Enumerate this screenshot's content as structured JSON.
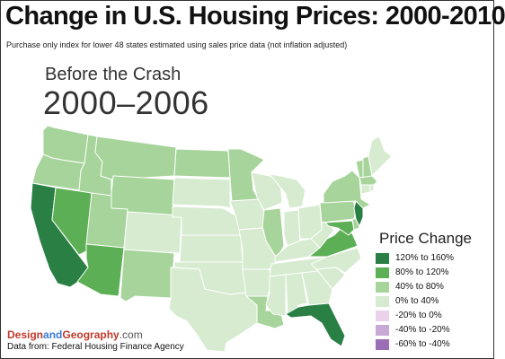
{
  "title": "Change in U.S. Housing Prices: 2000-2010",
  "subtitle": "Purchase only index for lower 48 states estimated using sales price data (not inflation adjusted)",
  "period": {
    "label": "Before the Crash",
    "range": "2000–2006"
  },
  "legend": {
    "title": "Price Change",
    "items": [
      {
        "label": "120% to 160%",
        "color": "#2a7f45"
      },
      {
        "label": "80% to 120%",
        "color": "#5daf55"
      },
      {
        "label": "40% to 80%",
        "color": "#a6d49a"
      },
      {
        "label": "0% to 40%",
        "color": "#d6ebcf"
      },
      {
        "label": "-20% to 0%",
        "color": "#ead2ea"
      },
      {
        "label": "-40% to -20%",
        "color": "#c8a8d6"
      },
      {
        "label": "-60% to -40%",
        "color": "#9b6fb5"
      }
    ]
  },
  "map_data": {
    "bins": {
      "120-160": [
        "California",
        "Florida",
        "New Jersey"
      ],
      "80-120": [
        "Nevada",
        "Arizona",
        "Virginia",
        "Maryland"
      ],
      "40-80": [
        "Washington",
        "Oregon",
        "Idaho",
        "Montana",
        "Wyoming",
        "Utah",
        "New Mexico",
        "North Dakota",
        "Minnesota",
        "Illinois",
        "Louisiana",
        "New York",
        "Pennsylvania",
        "Vermont",
        "New Hampshire",
        "Massachusetts",
        "Delaware"
      ],
      "0-40": [
        "Colorado",
        "South Dakota",
        "Nebraska",
        "Kansas",
        "Oklahoma",
        "Texas",
        "Iowa",
        "Missouri",
        "Arkansas",
        "Wisconsin",
        "Michigan",
        "Indiana",
        "Ohio",
        "Kentucky",
        "Tennessee",
        "Mississippi",
        "Alabama",
        "Georgia",
        "South Carolina",
        "North Carolina",
        "West Virginia",
        "Maine"
      ]
    }
  },
  "credit": {
    "brand_part1": "Design",
    "brand_part2": "and",
    "brand_part3": "Geography",
    "brand_suffix": ".com"
  },
  "source": "Data from:  Federal Housing Finance Agency"
}
